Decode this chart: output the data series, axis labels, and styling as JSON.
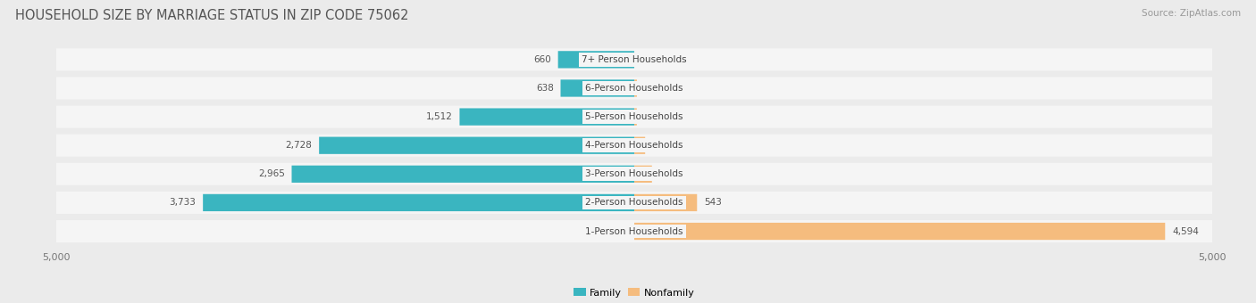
{
  "title": "HOUSEHOLD SIZE BY MARRIAGE STATUS IN ZIP CODE 75062",
  "source": "Source: ZipAtlas.com",
  "categories": [
    "7+ Person Households",
    "6-Person Households",
    "5-Person Households",
    "4-Person Households",
    "3-Person Households",
    "2-Person Households",
    "1-Person Households"
  ],
  "family": [
    660,
    638,
    1512,
    2728,
    2965,
    3733,
    0
  ],
  "nonfamily": [
    0,
    23,
    22,
    94,
    153,
    543,
    4594
  ],
  "family_color": "#3ab5c0",
  "nonfamily_color": "#f5bc7e",
  "axis_max": 5000,
  "bg_color": "#ebebeb",
  "row_bg_color": "#f5f5f5",
  "title_fontsize": 10.5,
  "source_fontsize": 7.5,
  "label_fontsize": 7.5,
  "tick_fontsize": 8,
  "value_fontsize": 7.5
}
